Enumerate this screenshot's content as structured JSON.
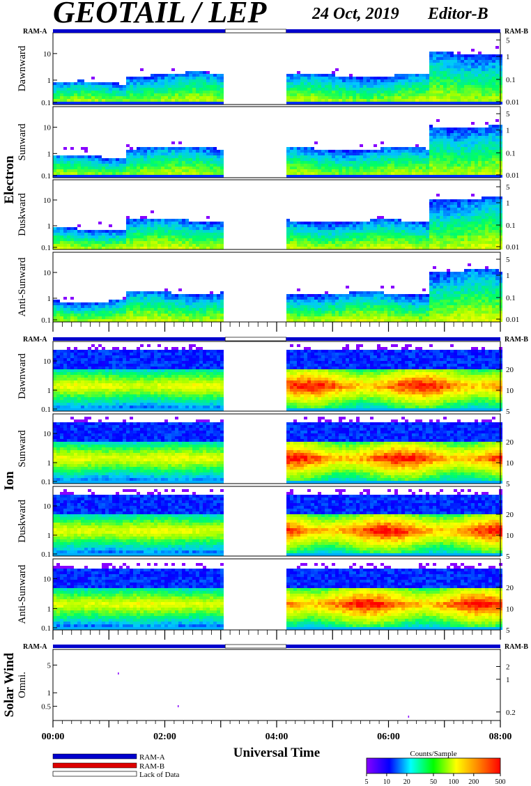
{
  "header": {
    "title": "GEOTAIL / LEP",
    "date": "24 Oct, 2019",
    "editor": "Editor-B"
  },
  "ram": {
    "a_label": "RAM-A",
    "b_label": "RAM-B"
  },
  "groups": [
    {
      "name": "Electron",
      "panels": [
        "Dawnward",
        "Sunward",
        "Duskward",
        "Anti-Sunward"
      ]
    },
    {
      "name": "Ion",
      "panels": [
        "Dawnward",
        "Sunward",
        "Duskward",
        "Anti-Sunward"
      ]
    },
    {
      "name": "Solar Wind",
      "panels": [
        "Omni."
      ]
    }
  ],
  "chart_data": {
    "type": "heatmap",
    "xlabel": "Universal Time",
    "x_tick_labels": [
      "00:00",
      "02:00",
      "04:00",
      "06:00",
      "08:00"
    ],
    "x_range_hours": [
      0,
      8
    ],
    "data_gap_hours": [
      3.08,
      4.17
    ],
    "electron_left_ticks": [
      "0.1",
      "1",
      "10"
    ],
    "electron_right_ticks": [
      "0.01",
      "0.1",
      "1",
      "5"
    ],
    "ion_left_ticks": [
      "0.1",
      "1",
      "10"
    ],
    "ion_right_ticks": [
      "5",
      "10",
      "20"
    ],
    "solarwind_left_ticks": [
      "0.5",
      "1",
      "5"
    ],
    "solarwind_right_ticks": [
      "0.2",
      "1",
      "2"
    ],
    "colorbar": {
      "title": "Counts/Sample",
      "tick_labels": [
        "5",
        "10",
        "20",
        "50",
        "100",
        "200",
        "500"
      ],
      "scale": "log",
      "colors": [
        "#8800ff",
        "#0000ff",
        "#00ffff",
        "#00ff00",
        "#ffff00",
        "#ff8800",
        "#ff0000"
      ]
    },
    "legend": [
      {
        "label": "RAM-A",
        "color": "#0000cc"
      },
      {
        "label": "RAM-B",
        "color": "#dd0000"
      },
      {
        "label": "Lack of Data",
        "color": "#ffffff"
      }
    ]
  }
}
